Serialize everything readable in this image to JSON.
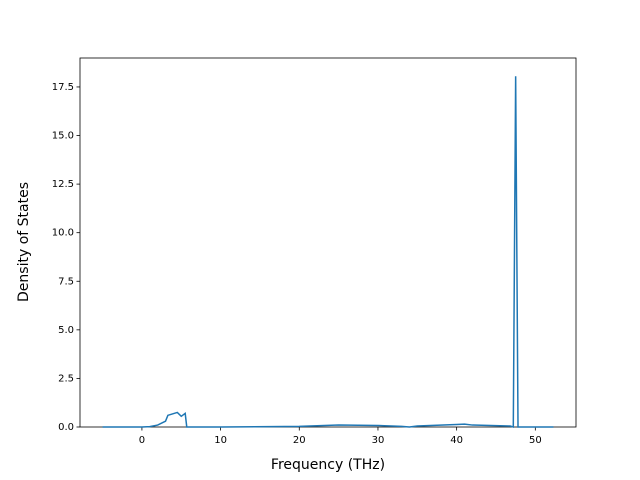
{
  "chart_data": {
    "type": "line",
    "x_label": "Frequency (THz)",
    "y_label": "Density of States",
    "x": [
      -5,
      0,
      1,
      2,
      3,
      3.3,
      4.5,
      5,
      5.5,
      5.7,
      10,
      20,
      25,
      30,
      33,
      34,
      35,
      40,
      41,
      42,
      46.8,
      47.2,
      47.5,
      47.8,
      52.3
    ],
    "series": [
      {
        "color": "#1f77b4",
        "values": [
          0,
          0,
          0.02,
          0.1,
          0.3,
          0.6,
          0.75,
          0.55,
          0.7,
          0,
          0,
          0.03,
          0.1,
          0.08,
          0.03,
          0,
          0.05,
          0.13,
          0.15,
          0.1,
          0.05,
          0,
          18.05,
          0,
          0
        ]
      }
    ],
    "xlim": [
      -7.87,
      55.17
    ],
    "ylim": [
      0,
      18.99
    ],
    "xticks": [
      0,
      10,
      20,
      30,
      40,
      50
    ],
    "yticks": [
      {
        "value": 0,
        "label": "0.0"
      },
      2.5,
      {
        "value": 5,
        "label": "5.0"
      },
      7.5,
      {
        "value": 10,
        "label": "10.0"
      },
      12.5,
      {
        "value": 15,
        "label": "15.0"
      },
      17.5
    ]
  }
}
